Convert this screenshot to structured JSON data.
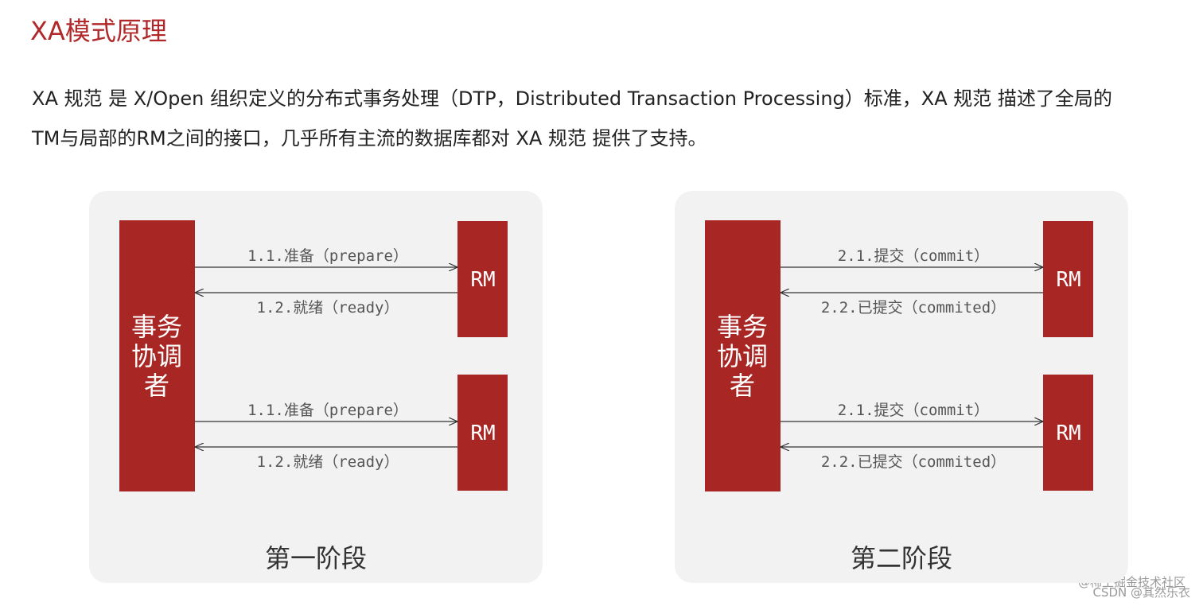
{
  "title": "XA模式原理",
  "paragraph": [
    "XA 规范 是 X/Open 组织定义的分布式事务处理（DTP，Distributed Transaction Processing）标准，XA 规范 描述了全局的",
    "TM与局部的RM之间的接口，几乎所有主流的数据库都对 XA 规范 提供了支持。"
  ],
  "panels": [
    {
      "coordinator": [
        "事务",
        "协调",
        "者"
      ],
      "groups": [
        {
          "rm": "RM",
          "request": "1.1.准备（prepare）",
          "response": "1.2.就绪（ready）"
        },
        {
          "rm": "RM",
          "request": "1.1.准备（prepare）",
          "response": "1.2.就绪（ready）"
        }
      ],
      "phase": "第一阶段"
    },
    {
      "coordinator": [
        "事务",
        "协调",
        "者"
      ],
      "groups": [
        {
          "rm": "RM",
          "request": "2.1.提交（commit）",
          "response": "2.2.已提交（commited）"
        },
        {
          "rm": "RM",
          "request": "2.1.提交（commit）",
          "response": "2.2.已提交（commited）"
        }
      ],
      "phase": "第二阶段"
    }
  ],
  "watermark": [
    "@稀土掘金技术社区",
    "CSDN @其然乐衣"
  ]
}
